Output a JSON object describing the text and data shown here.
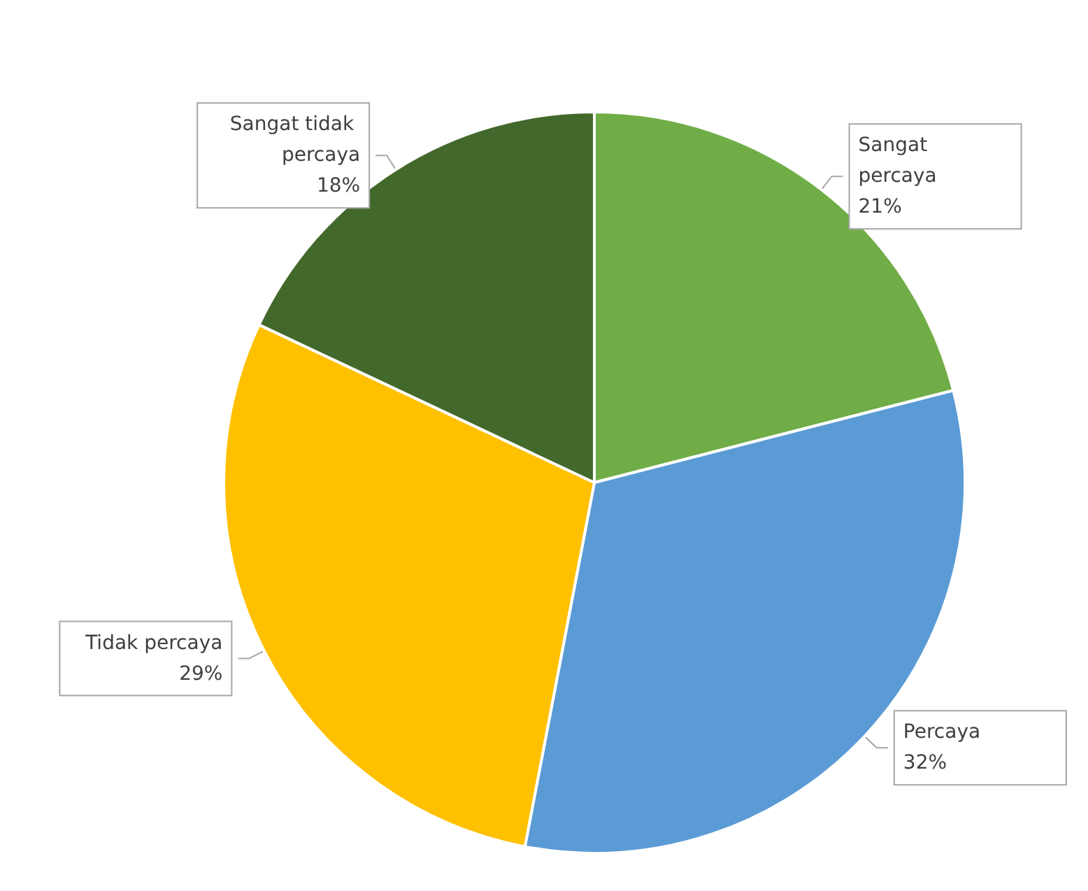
{
  "chart_data": {
    "type": "pie",
    "categories": [
      "Sangat percaya",
      "Percaya",
      "Tidak percaya",
      "Sangat tidak percaya"
    ],
    "values": [
      21,
      32,
      29,
      18
    ],
    "colors": [
      "#70ad47",
      "#5b9bd5",
      "#ffc000",
      "#43682b"
    ],
    "value_labels": [
      "21%",
      "32%",
      "29%",
      "18%"
    ],
    "legend": false
  }
}
